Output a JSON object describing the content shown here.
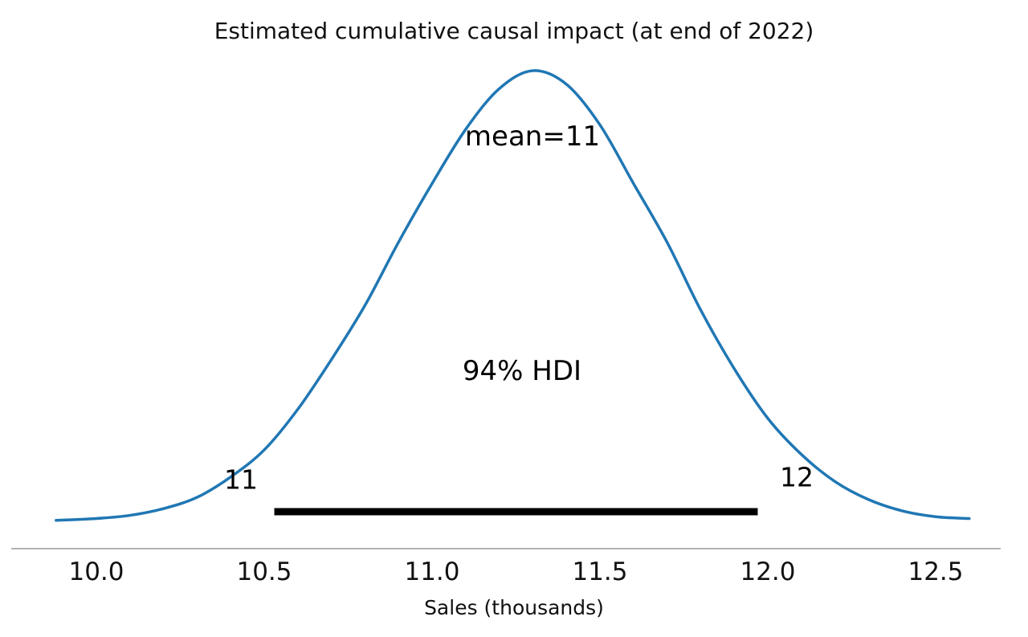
{
  "title": "Estimated cumulative causal impact (at end of 2022)",
  "xlabel": "Sales (thousands)",
  "annotations": {
    "mean_label": "mean=11",
    "hdi_label": "94% HDI",
    "hdi_lower_label": "11",
    "hdi_upper_label": "12"
  },
  "colors": {
    "curve": "#2077b4",
    "hdi_line": "#000000",
    "spine": "#9a9a9a",
    "text": "#111111"
  },
  "chart_data": {
    "type": "line",
    "title": "Estimated cumulative causal impact (at end of 2022)",
    "xlabel": "Sales (thousands)",
    "ylabel": "",
    "xlim": [
      9.8,
      12.72
    ],
    "ylim": [
      0,
      1.05
    ],
    "grid": false,
    "legend": false,
    "x_ticks": [
      10.0,
      10.5,
      11.0,
      11.5,
      12.0,
      12.5
    ],
    "mean": 11,
    "hdi_interval": "94%",
    "hdi_lower": 10.53,
    "hdi_upper": 11.97,
    "kde": {
      "x": [
        9.88,
        10.0,
        10.1,
        10.2,
        10.3,
        10.4,
        10.5,
        10.6,
        10.7,
        10.8,
        10.9,
        11.0,
        11.1,
        11.2,
        11.3,
        11.4,
        11.5,
        11.6,
        11.7,
        11.8,
        11.9,
        12.0,
        12.1,
        12.2,
        12.3,
        12.4,
        12.5,
        12.6
      ],
      "density": [
        0.004,
        0.008,
        0.015,
        0.03,
        0.055,
        0.1,
        0.16,
        0.25,
        0.36,
        0.48,
        0.62,
        0.75,
        0.87,
        0.96,
        1.0,
        0.97,
        0.88,
        0.75,
        0.62,
        0.47,
        0.34,
        0.23,
        0.15,
        0.09,
        0.05,
        0.025,
        0.012,
        0.008
      ]
    }
  }
}
